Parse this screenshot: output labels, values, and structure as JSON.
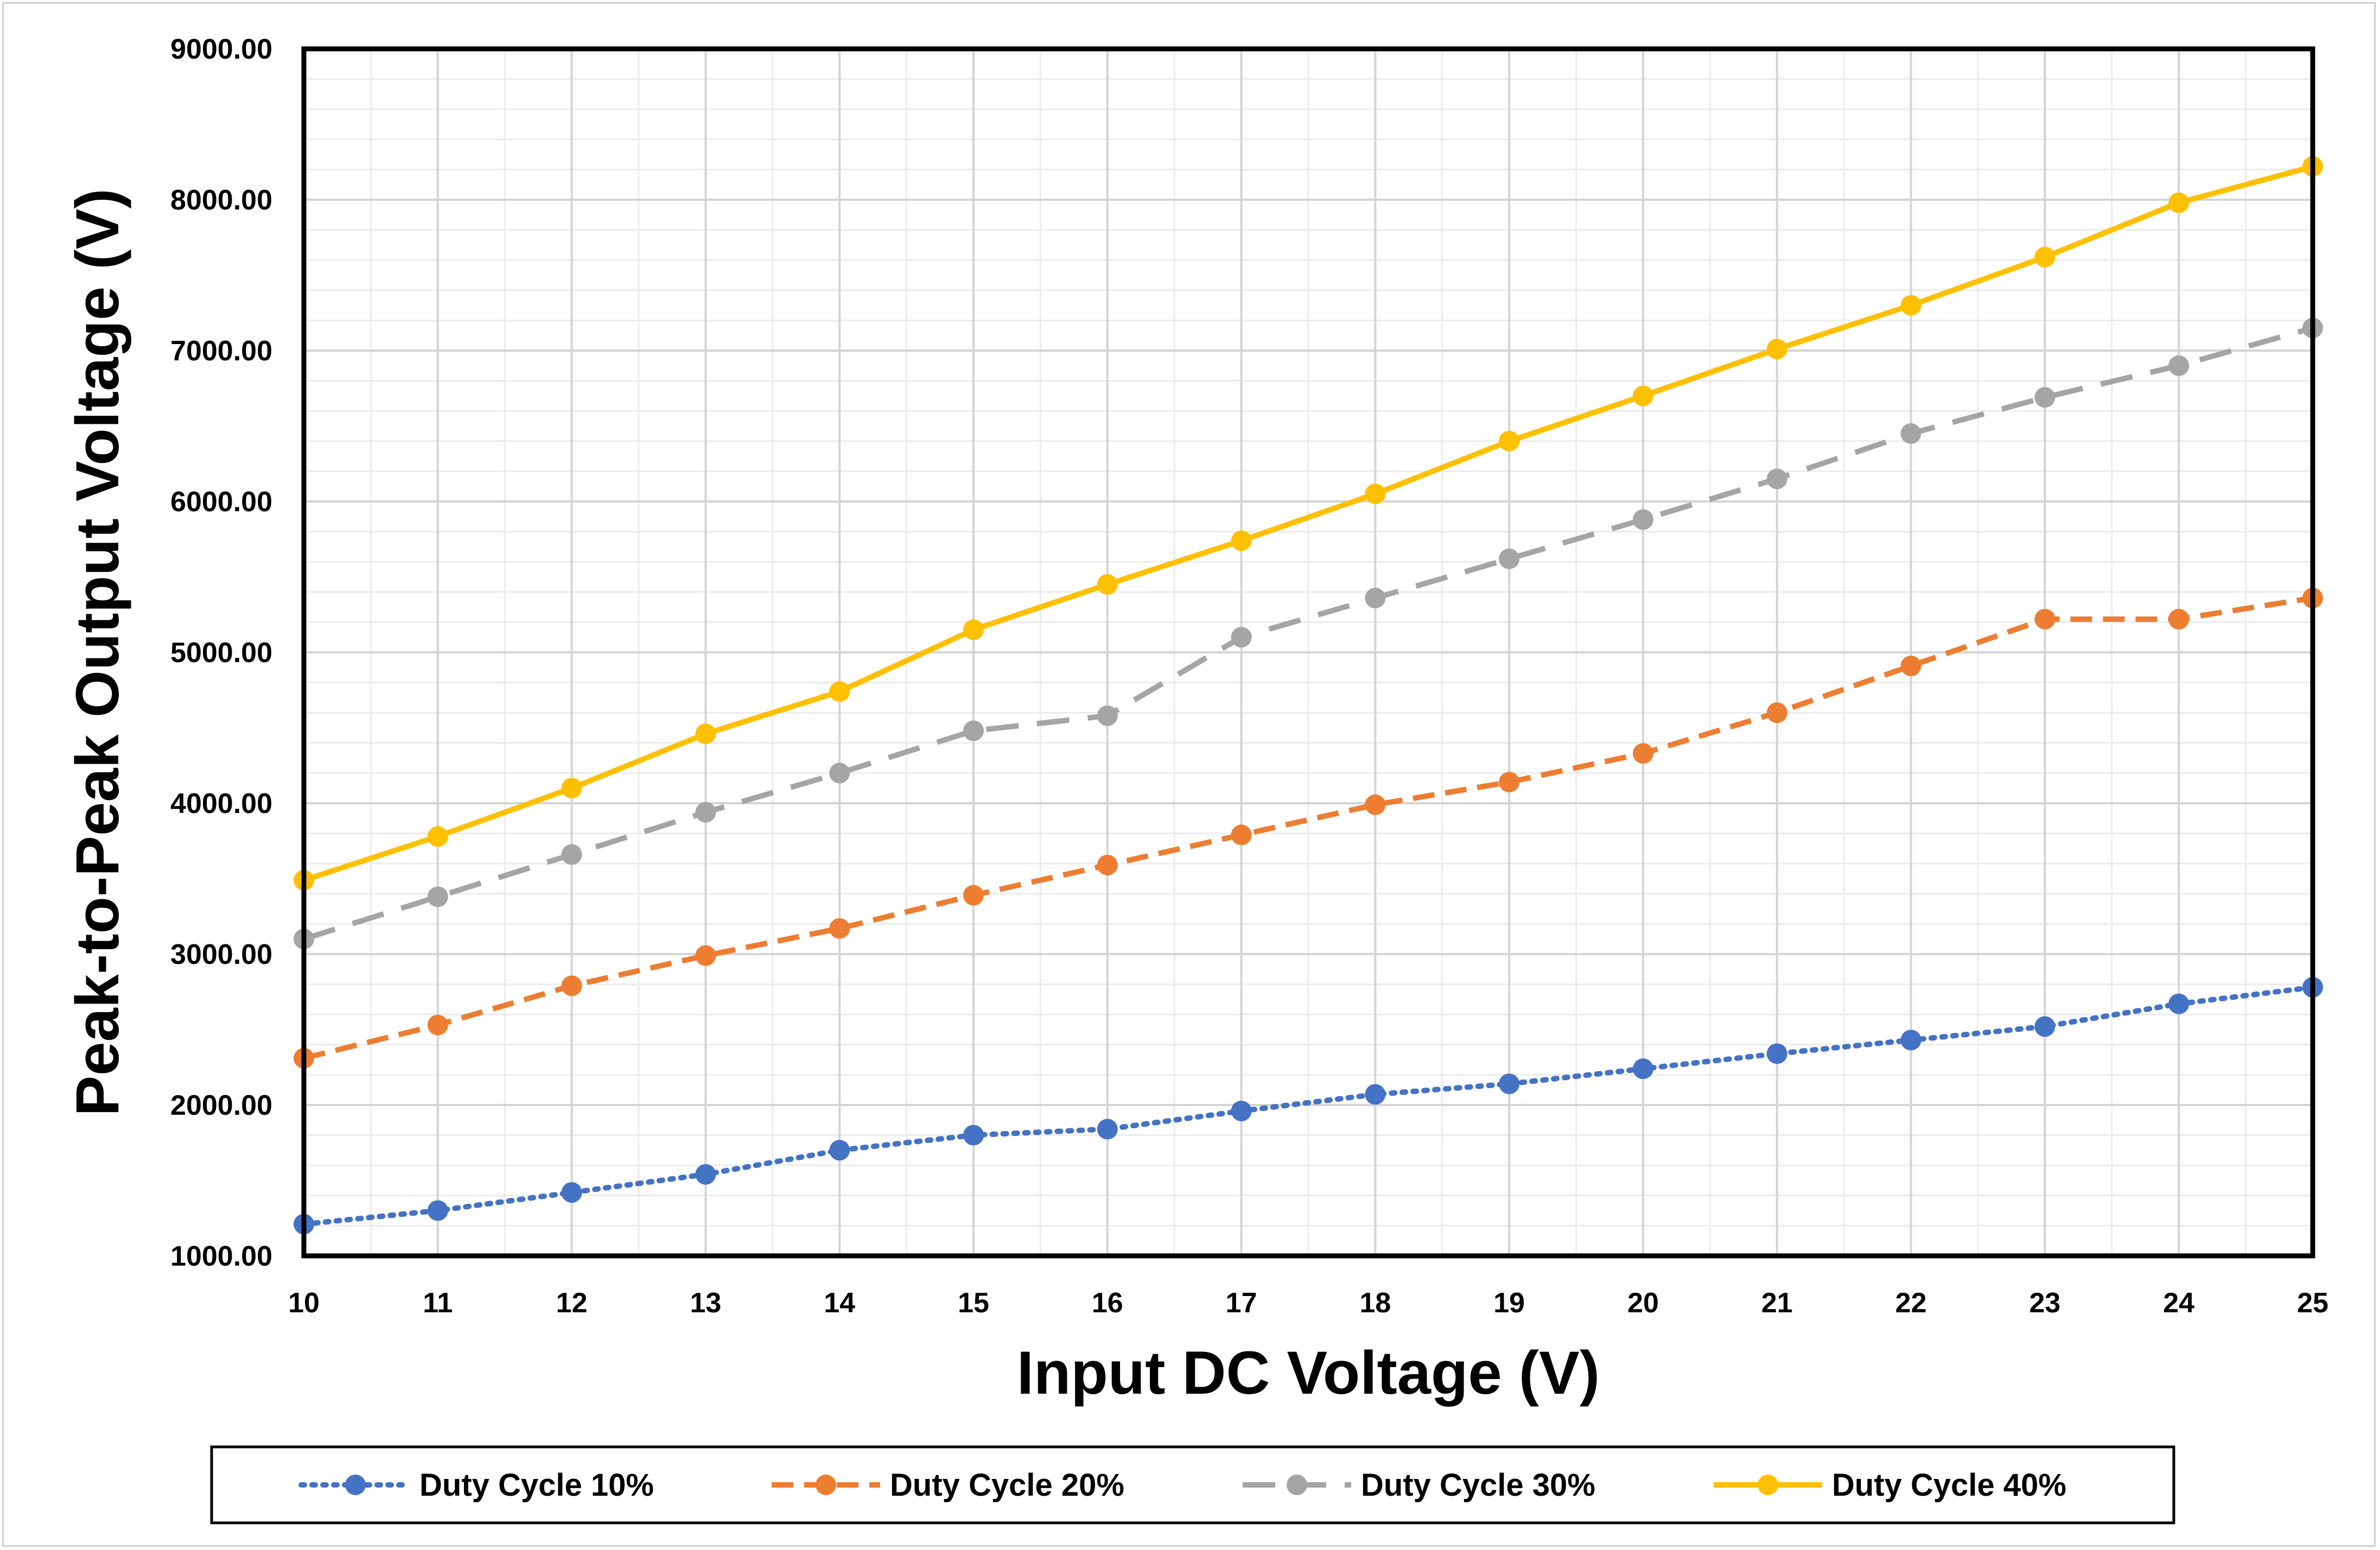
{
  "chart_data": {
    "type": "line",
    "title": "",
    "xlabel": "Input DC Voltage (V)",
    "ylabel": "Peak-to-Peak Output Voltage (V)",
    "x": [
      10,
      11,
      12,
      13,
      14,
      15,
      16,
      17,
      18,
      19,
      20,
      21,
      22,
      23,
      24,
      25
    ],
    "xlim": [
      10,
      25
    ],
    "ylim": [
      1000,
      9000
    ],
    "y_ticks": [
      "1000.00",
      "2000.00",
      "3000.00",
      "4000.00",
      "5000.00",
      "6000.00",
      "7000.00",
      "8000.00",
      "9000.00"
    ],
    "x_ticks": [
      "10",
      "11",
      "12",
      "13",
      "14",
      "15",
      "16",
      "17",
      "18",
      "19",
      "20",
      "21",
      "22",
      "23",
      "24",
      "25"
    ],
    "grid": true,
    "legend_position": "bottom",
    "series": [
      {
        "name": "Duty Cycle 10%",
        "color": "#4472C4",
        "line_style": "dotted",
        "values": [
          1210,
          1300,
          1420,
          1540,
          1700,
          1800,
          1840,
          1960,
          2070,
          2140,
          2240,
          2340,
          2430,
          2520,
          2670,
          2780
        ]
      },
      {
        "name": "Duty Cycle 20%",
        "color": "#ED7D31",
        "line_style": "dashed",
        "values": [
          2310,
          2530,
          2790,
          2990,
          3170,
          3390,
          3590,
          3790,
          3990,
          4140,
          4330,
          4600,
          4910,
          5220,
          5220,
          5360
        ]
      },
      {
        "name": "Duty Cycle 30%",
        "color": "#A5A5A5",
        "line_style": "long-dash",
        "values": [
          3100,
          3380,
          3660,
          3940,
          4200,
          4480,
          4580,
          5100,
          5360,
          5620,
          5880,
          6150,
          6450,
          6690,
          6900,
          7150
        ]
      },
      {
        "name": "Duty Cycle 40%",
        "color": "#FFC000",
        "line_style": "solid",
        "values": [
          3490,
          3780,
          4100,
          4460,
          4740,
          5150,
          5450,
          5740,
          6050,
          6400,
          6700,
          7010,
          7300,
          7620,
          7980,
          8220
        ]
      }
    ]
  }
}
